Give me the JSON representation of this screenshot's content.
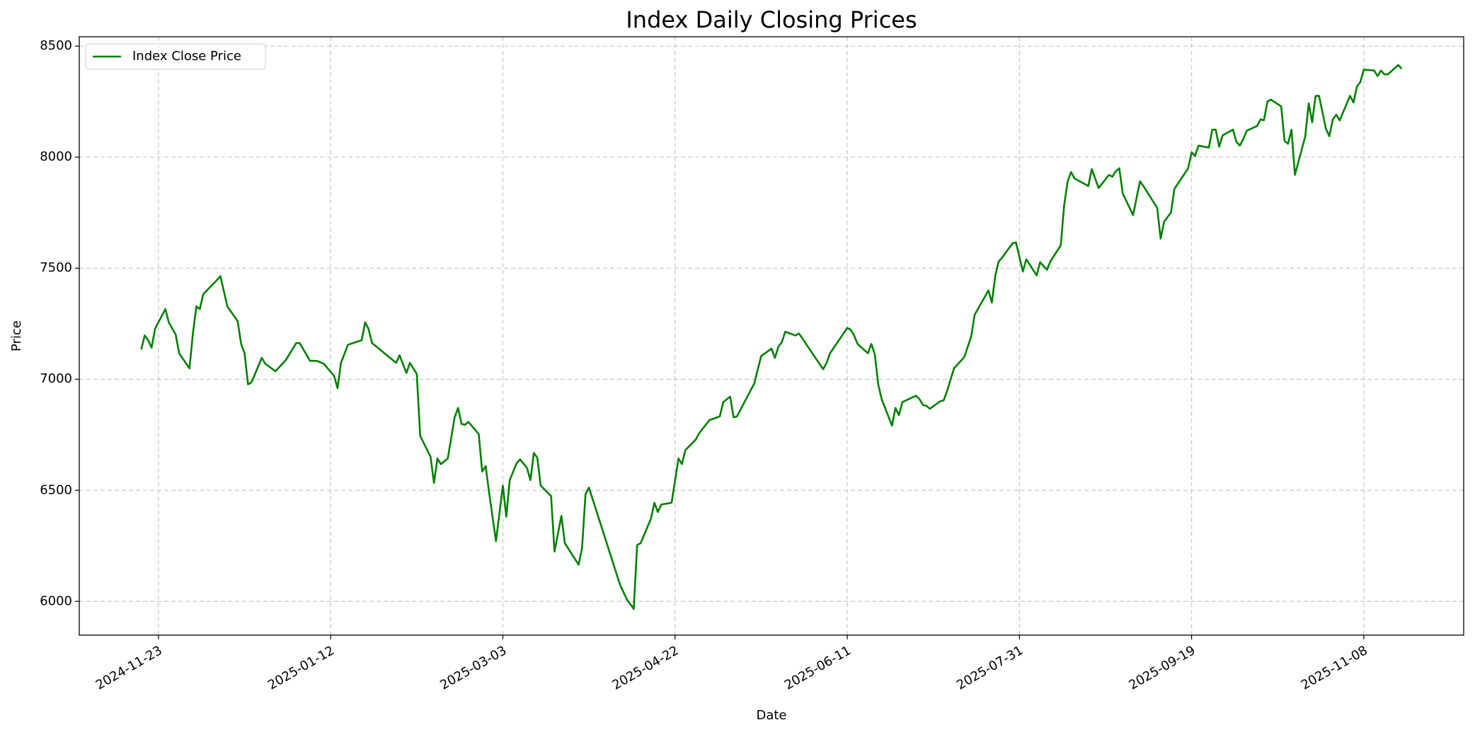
{
  "chart_data": {
    "type": "line",
    "title": "Index Daily Closing Prices",
    "x_label": "Date",
    "y_label": "Price",
    "x": [
      "2024-11-18",
      "2024-11-19",
      "2024-11-20",
      "2024-11-21",
      "2024-11-22",
      "2024-11-25",
      "2024-11-26",
      "2024-11-28",
      "2024-11-29",
      "2024-12-02",
      "2024-12-03",
      "2024-12-04",
      "2024-12-05",
      "2024-12-06",
      "2024-12-10",
      "2024-12-11",
      "2024-12-13",
      "2024-12-16",
      "2024-12-17",
      "2024-12-18",
      "2024-12-19",
      "2024-12-20",
      "2024-12-23",
      "2024-12-24",
      "2024-12-27",
      "2024-12-30",
      "2025-01-02",
      "2025-01-03",
      "2025-01-06",
      "2025-01-08",
      "2025-01-10",
      "2025-01-13",
      "2025-01-14",
      "2025-01-15",
      "2025-01-17",
      "2025-01-21",
      "2025-01-22",
      "2025-01-23",
      "2025-01-24",
      "2025-01-31",
      "2025-02-01",
      "2025-02-03",
      "2025-02-04",
      "2025-02-06",
      "2025-02-07",
      "2025-02-10",
      "2025-02-11",
      "2025-02-12",
      "2025-02-13",
      "2025-02-15",
      "2025-02-17",
      "2025-02-18",
      "2025-02-19",
      "2025-02-20",
      "2025-02-21",
      "2025-02-24",
      "2025-02-25",
      "2025-02-26",
      "2025-02-27",
      "2025-03-01",
      "2025-03-03",
      "2025-03-04",
      "2025-03-05",
      "2025-03-07",
      "2025-03-08",
      "2025-03-10",
      "2025-03-11",
      "2025-03-12",
      "2025-03-13",
      "2025-03-14",
      "2025-03-17",
      "2025-03-18",
      "2025-03-20",
      "2025-03-21",
      "2025-03-25",
      "2025-03-26",
      "2025-03-27",
      "2025-03-28",
      "2025-04-06",
      "2025-04-08",
      "2025-04-10",
      "2025-04-11",
      "2025-04-12",
      "2025-04-15",
      "2025-04-16",
      "2025-04-17",
      "2025-04-18",
      "2025-04-21",
      "2025-04-23",
      "2025-04-24",
      "2025-04-25",
      "2025-04-28",
      "2025-04-29",
      "2025-05-02",
      "2025-05-05",
      "2025-05-06",
      "2025-05-08",
      "2025-05-09",
      "2025-05-10",
      "2025-05-15",
      "2025-05-17",
      "2025-05-20",
      "2025-05-21",
      "2025-05-22",
      "2025-05-23",
      "2025-05-24",
      "2025-05-27",
      "2025-05-28",
      "2025-06-04",
      "2025-06-05",
      "2025-06-06",
      "2025-06-11",
      "2025-06-12",
      "2025-06-13",
      "2025-06-14",
      "2025-06-17",
      "2025-06-18",
      "2025-06-19",
      "2025-06-20",
      "2025-06-21",
      "2025-06-24",
      "2025-06-25",
      "2025-06-26",
      "2025-06-27",
      "2025-07-01",
      "2025-07-02",
      "2025-07-03",
      "2025-07-04",
      "2025-07-05",
      "2025-07-08",
      "2025-07-09",
      "2025-07-10",
      "2025-07-12",
      "2025-07-15",
      "2025-07-17",
      "2025-07-18",
      "2025-07-22",
      "2025-07-23",
      "2025-07-24",
      "2025-07-25",
      "2025-07-26",
      "2025-07-29",
      "2025-07-30",
      "2025-08-01",
      "2025-08-02",
      "2025-08-05",
      "2025-08-06",
      "2025-08-08",
      "2025-08-09",
      "2025-08-12",
      "2025-08-13",
      "2025-08-14",
      "2025-08-15",
      "2025-08-16",
      "2025-08-20",
      "2025-08-21",
      "2025-08-23",
      "2025-08-26",
      "2025-08-27",
      "2025-08-28",
      "2025-08-29",
      "2025-08-30",
      "2025-09-02",
      "2025-09-04",
      "2025-09-05",
      "2025-09-09",
      "2025-09-10",
      "2025-09-11",
      "2025-09-13",
      "2025-09-14",
      "2025-09-18",
      "2025-09-19",
      "2025-09-20",
      "2025-09-21",
      "2025-09-24",
      "2025-09-25",
      "2025-09-26",
      "2025-09-27",
      "2025-09-28",
      "2025-10-01",
      "2025-10-02",
      "2025-10-03",
      "2025-10-04",
      "2025-10-05",
      "2025-10-08",
      "2025-10-09",
      "2025-10-10",
      "2025-10-11",
      "2025-10-12",
      "2025-10-15",
      "2025-10-16",
      "2025-10-17",
      "2025-10-18",
      "2025-10-19",
      "2025-10-22",
      "2025-10-23",
      "2025-10-24",
      "2025-10-25",
      "2025-10-26",
      "2025-10-28",
      "2025-10-29",
      "2025-10-30",
      "2025-10-31",
      "2025-11-01",
      "2025-11-04",
      "2025-11-05",
      "2025-11-06",
      "2025-11-07",
      "2025-11-08",
      "2025-11-11",
      "2025-11-12",
      "2025-11-13",
      "2025-11-14",
      "2025-11-15",
      "2025-11-18",
      "2025-11-19"
    ],
    "series": [
      {
        "name": "Index Close Price",
        "color": "#008000",
        "values": [
          7134,
          7197,
          7176,
          7142,
          7227,
          7316,
          7256,
          7201,
          7117,
          7049,
          7206,
          7328,
          7316,
          7383,
          7447,
          7464,
          7328,
          7261,
          7159,
          7117,
          6977,
          6986,
          7096,
          7070,
          7036,
          7087,
          7163,
          7163,
          7083,
          7083,
          7070,
          7015,
          6960,
          7074,
          7155,
          7176,
          7256,
          7227,
          7163,
          7074,
          7108,
          7028,
          7074,
          7024,
          6745,
          6651,
          6533,
          6643,
          6618,
          6643,
          6829,
          6871,
          6799,
          6795,
          6808,
          6753,
          6584,
          6609,
          6491,
          6271,
          6521,
          6381,
          6546,
          6622,
          6639,
          6601,
          6546,
          6668,
          6647,
          6521,
          6474,
          6224,
          6385,
          6262,
          6165,
          6241,
          6482,
          6512,
          6076,
          6009,
          5966,
          6254,
          6262,
          6372,
          6444,
          6402,
          6436,
          6444,
          6643,
          6618,
          6681,
          6728,
          6757,
          6816,
          6833,
          6897,
          6922,
          6829,
          6833,
          6981,
          7104,
          7138,
          7096,
          7146,
          7167,
          7214,
          7197,
          7206,
          7045,
          7074,
          7117,
          7231,
          7223,
          7197,
          7159,
          7117,
          7159,
          7113,
          6977,
          6910,
          6791,
          6871,
          6838,
          6897,
          6926,
          6910,
          6884,
          6880,
          6867,
          6901,
          6905,
          6948,
          7049,
          7100,
          7193,
          7290,
          7400,
          7345,
          7468,
          7531,
          7548,
          7612,
          7616,
          7485,
          7540,
          7468,
          7527,
          7493,
          7531,
          7603,
          7785,
          7891,
          7933,
          7904,
          7870,
          7946,
          7861,
          7920,
          7912,
          7937,
          7950,
          7836,
          7739,
          7891,
          7870,
          7772,
          7633,
          7709,
          7751,
          7857,
          7950,
          8022,
          8005,
          8052,
          8043,
          8124,
          8124,
          8047,
          8098,
          8124,
          8069,
          8052,
          8081,
          8119,
          8140,
          8170,
          8166,
          8250,
          8259,
          8229,
          8073,
          8060,
          8124,
          7920,
          8094,
          8242,
          8157,
          8276,
          8276,
          8128,
          8094,
          8170,
          8191,
          8166,
          8276,
          8246,
          8318,
          8339,
          8394,
          8390,
          8365,
          8390,
          8373,
          8373,
          8415,
          8398
        ]
      }
    ],
    "xlim": [
      "2024-10-31",
      "2025-12-07"
    ],
    "xticks": [
      "2024-11-23",
      "2025-01-12",
      "2025-03-03",
      "2025-04-22",
      "2025-06-11",
      "2025-07-31",
      "2025-09-19",
      "2025-11-08"
    ],
    "ylim": [
      5848,
      8542
    ],
    "yticks": [
      6000,
      6500,
      7000,
      7500,
      8000,
      8500
    ],
    "grid": true,
    "legend": "upper left"
  }
}
